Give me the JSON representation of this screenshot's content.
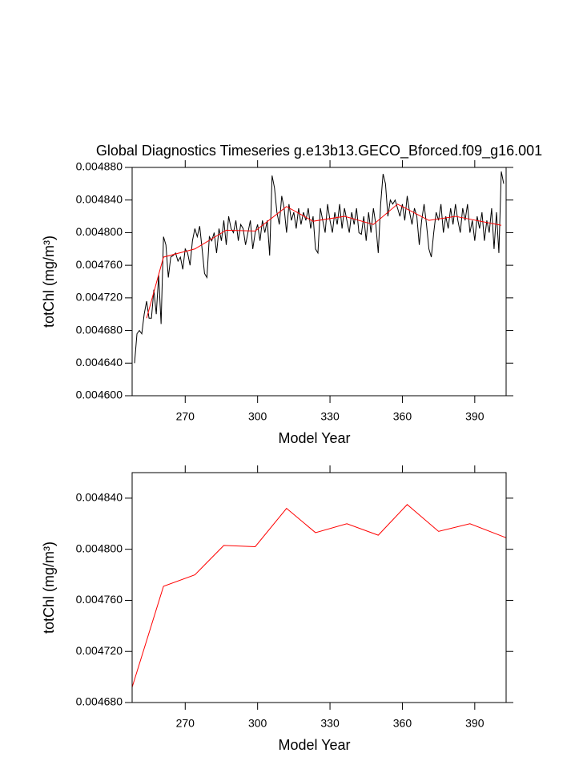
{
  "chart_data": [
    {
      "type": "line",
      "title": "Global Diagnostics Timeseries g.e13b13.GECO_Bforced.f09_g16.001",
      "x_label": "Model Year",
      "y_label": "totChl (mg/m³)",
      "xlim": [
        248,
        403
      ],
      "ylim": [
        0.0046,
        0.00488
      ],
      "xticks": [
        270,
        300,
        330,
        360,
        390
      ],
      "yticks": [
        {
          "value": 0.0046,
          "label": "0.004600"
        },
        {
          "value": 0.00464,
          "label": "0.004640"
        },
        {
          "value": 0.00468,
          "label": "0.004680"
        },
        {
          "value": 0.00472,
          "label": "0.004720"
        },
        {
          "value": 0.00476,
          "label": "0.004760"
        },
        {
          "value": 0.0048,
          "label": "0.004800"
        },
        {
          "value": 0.00484,
          "label": "0.004840"
        },
        {
          "value": 0.00488,
          "label": "0.004880"
        }
      ],
      "series": [
        {
          "color": "#000000",
          "x": [
            249,
            250,
            251,
            252,
            253,
            254,
            255,
            256,
            257,
            258,
            259,
            260,
            261,
            262,
            263,
            264,
            265,
            266,
            267,
            268,
            269,
            270,
            271,
            272,
            273,
            274,
            275,
            276,
            277,
            278,
            279,
            280,
            281,
            282,
            283,
            284,
            285,
            286,
            287,
            288,
            289,
            290,
            291,
            292,
            293,
            294,
            295,
            296,
            297,
            298,
            299,
            300,
            301,
            302,
            303,
            304,
            305,
            306,
            307,
            308,
            309,
            310,
            311,
            312,
            313,
            314,
            315,
            316,
            317,
            318,
            319,
            320,
            321,
            322,
            323,
            324,
            325,
            326,
            327,
            328,
            329,
            330,
            331,
            332,
            333,
            334,
            335,
            336,
            337,
            338,
            339,
            340,
            341,
            342,
            343,
            344,
            345,
            346,
            347,
            348,
            349,
            350,
            351,
            352,
            353,
            354,
            355,
            356,
            357,
            358,
            359,
            360,
            361,
            362,
            363,
            364,
            365,
            366,
            367,
            368,
            369,
            370,
            371,
            372,
            373,
            374,
            375,
            376,
            377,
            378,
            379,
            380,
            381,
            382,
            383,
            384,
            385,
            386,
            387,
            388,
            389,
            390,
            391,
            392,
            393,
            394,
            395,
            396,
            397,
            398,
            399,
            400,
            401,
            402
          ],
          "values": [
            0.00464,
            0.004676,
            0.00468,
            0.004676,
            0.0047,
            0.004716,
            0.004695,
            0.004695,
            0.00473,
            0.0047,
            0.004748,
            0.004688,
            0.004795,
            0.004785,
            0.004745,
            0.00477,
            0.004772,
            0.004775,
            0.004765,
            0.00477,
            0.004755,
            0.00478,
            0.004775,
            0.00476,
            0.00479,
            0.004805,
            0.004795,
            0.004808,
            0.00478,
            0.00475,
            0.004745,
            0.004795,
            0.00479,
            0.0048,
            0.004775,
            0.004805,
            0.00479,
            0.004815,
            0.004785,
            0.00482,
            0.004805,
            0.0048,
            0.004815,
            0.00479,
            0.00481,
            0.004805,
            0.004785,
            0.0048,
            0.004815,
            0.00478,
            0.0048,
            0.00481,
            0.00479,
            0.004815,
            0.0048,
            0.004815,
            0.004772,
            0.00487,
            0.004855,
            0.004825,
            0.00481,
            0.004845,
            0.00483,
            0.0048,
            0.004835,
            0.004815,
            0.004825,
            0.004805,
            0.00483,
            0.00481,
            0.004825,
            0.004815,
            0.00483,
            0.004805,
            0.00482,
            0.00478,
            0.004775,
            0.00483,
            0.004815,
            0.0048,
            0.004835,
            0.004815,
            0.0048,
            0.004825,
            0.00481,
            0.004835,
            0.004805,
            0.00483,
            0.004815,
            0.0048,
            0.004825,
            0.00481,
            0.00483,
            0.0048,
            0.004798,
            0.00482,
            0.00479,
            0.004825,
            0.0048,
            0.00483,
            0.00481,
            0.004775,
            0.004835,
            0.004872,
            0.00486,
            0.00482,
            0.00484,
            0.004835,
            0.00484,
            0.00483,
            0.00482,
            0.004835,
            0.004815,
            0.004845,
            0.004825,
            0.00481,
            0.00483,
            0.00482,
            0.004785,
            0.004815,
            0.004835,
            0.00481,
            0.00478,
            0.00477,
            0.0048,
            0.004825,
            0.004815,
            0.004835,
            0.0048,
            0.00482,
            0.004805,
            0.00483,
            0.00481,
            0.004835,
            0.004815,
            0.0048,
            0.00483,
            0.004815,
            0.004835,
            0.0048,
            0.004815,
            0.00479,
            0.00482,
            0.004805,
            0.004825,
            0.00479,
            0.004815,
            0.0048,
            0.00483,
            0.00478,
            0.004825,
            0.004775,
            0.004875,
            0.00486
          ]
        },
        {
          "color": "#ff0000",
          "x": [
            254,
            261,
            274,
            287,
            299,
            312,
            323,
            336,
            348,
            358,
            371,
            382,
            401
          ],
          "values": [
            0.004695,
            0.00477,
            0.00478,
            0.004803,
            0.004802,
            0.004832,
            0.004814,
            0.00482,
            0.00481,
            0.004835,
            0.004815,
            0.00482,
            0.004809
          ]
        }
      ]
    },
    {
      "type": "line",
      "x_label": "Model Year",
      "y_label": "totChl (mg/m³)",
      "xlim": [
        248,
        403
      ],
      "ylim": [
        0.00468,
        0.00486
      ],
      "xticks": [
        270,
        300,
        330,
        360,
        390
      ],
      "yticks": [
        {
          "value": 0.00468,
          "label": "0.004680"
        },
        {
          "value": 0.00472,
          "label": "0.004720"
        },
        {
          "value": 0.00476,
          "label": "0.004760"
        },
        {
          "value": 0.0048,
          "label": "0.004800"
        },
        {
          "value": 0.00484,
          "label": "0.004840"
        }
      ],
      "series": [
        {
          "color": "#ff0000",
          "x": [
            248,
            261,
            274,
            286,
            299,
            312,
            324,
            337,
            350,
            362,
            375,
            388,
            403
          ],
          "values": [
            0.004692,
            0.004771,
            0.00478,
            0.004803,
            0.004802,
            0.004832,
            0.004813,
            0.00482,
            0.004811,
            0.004835,
            0.004814,
            0.00482,
            0.004809
          ]
        }
      ]
    }
  ]
}
